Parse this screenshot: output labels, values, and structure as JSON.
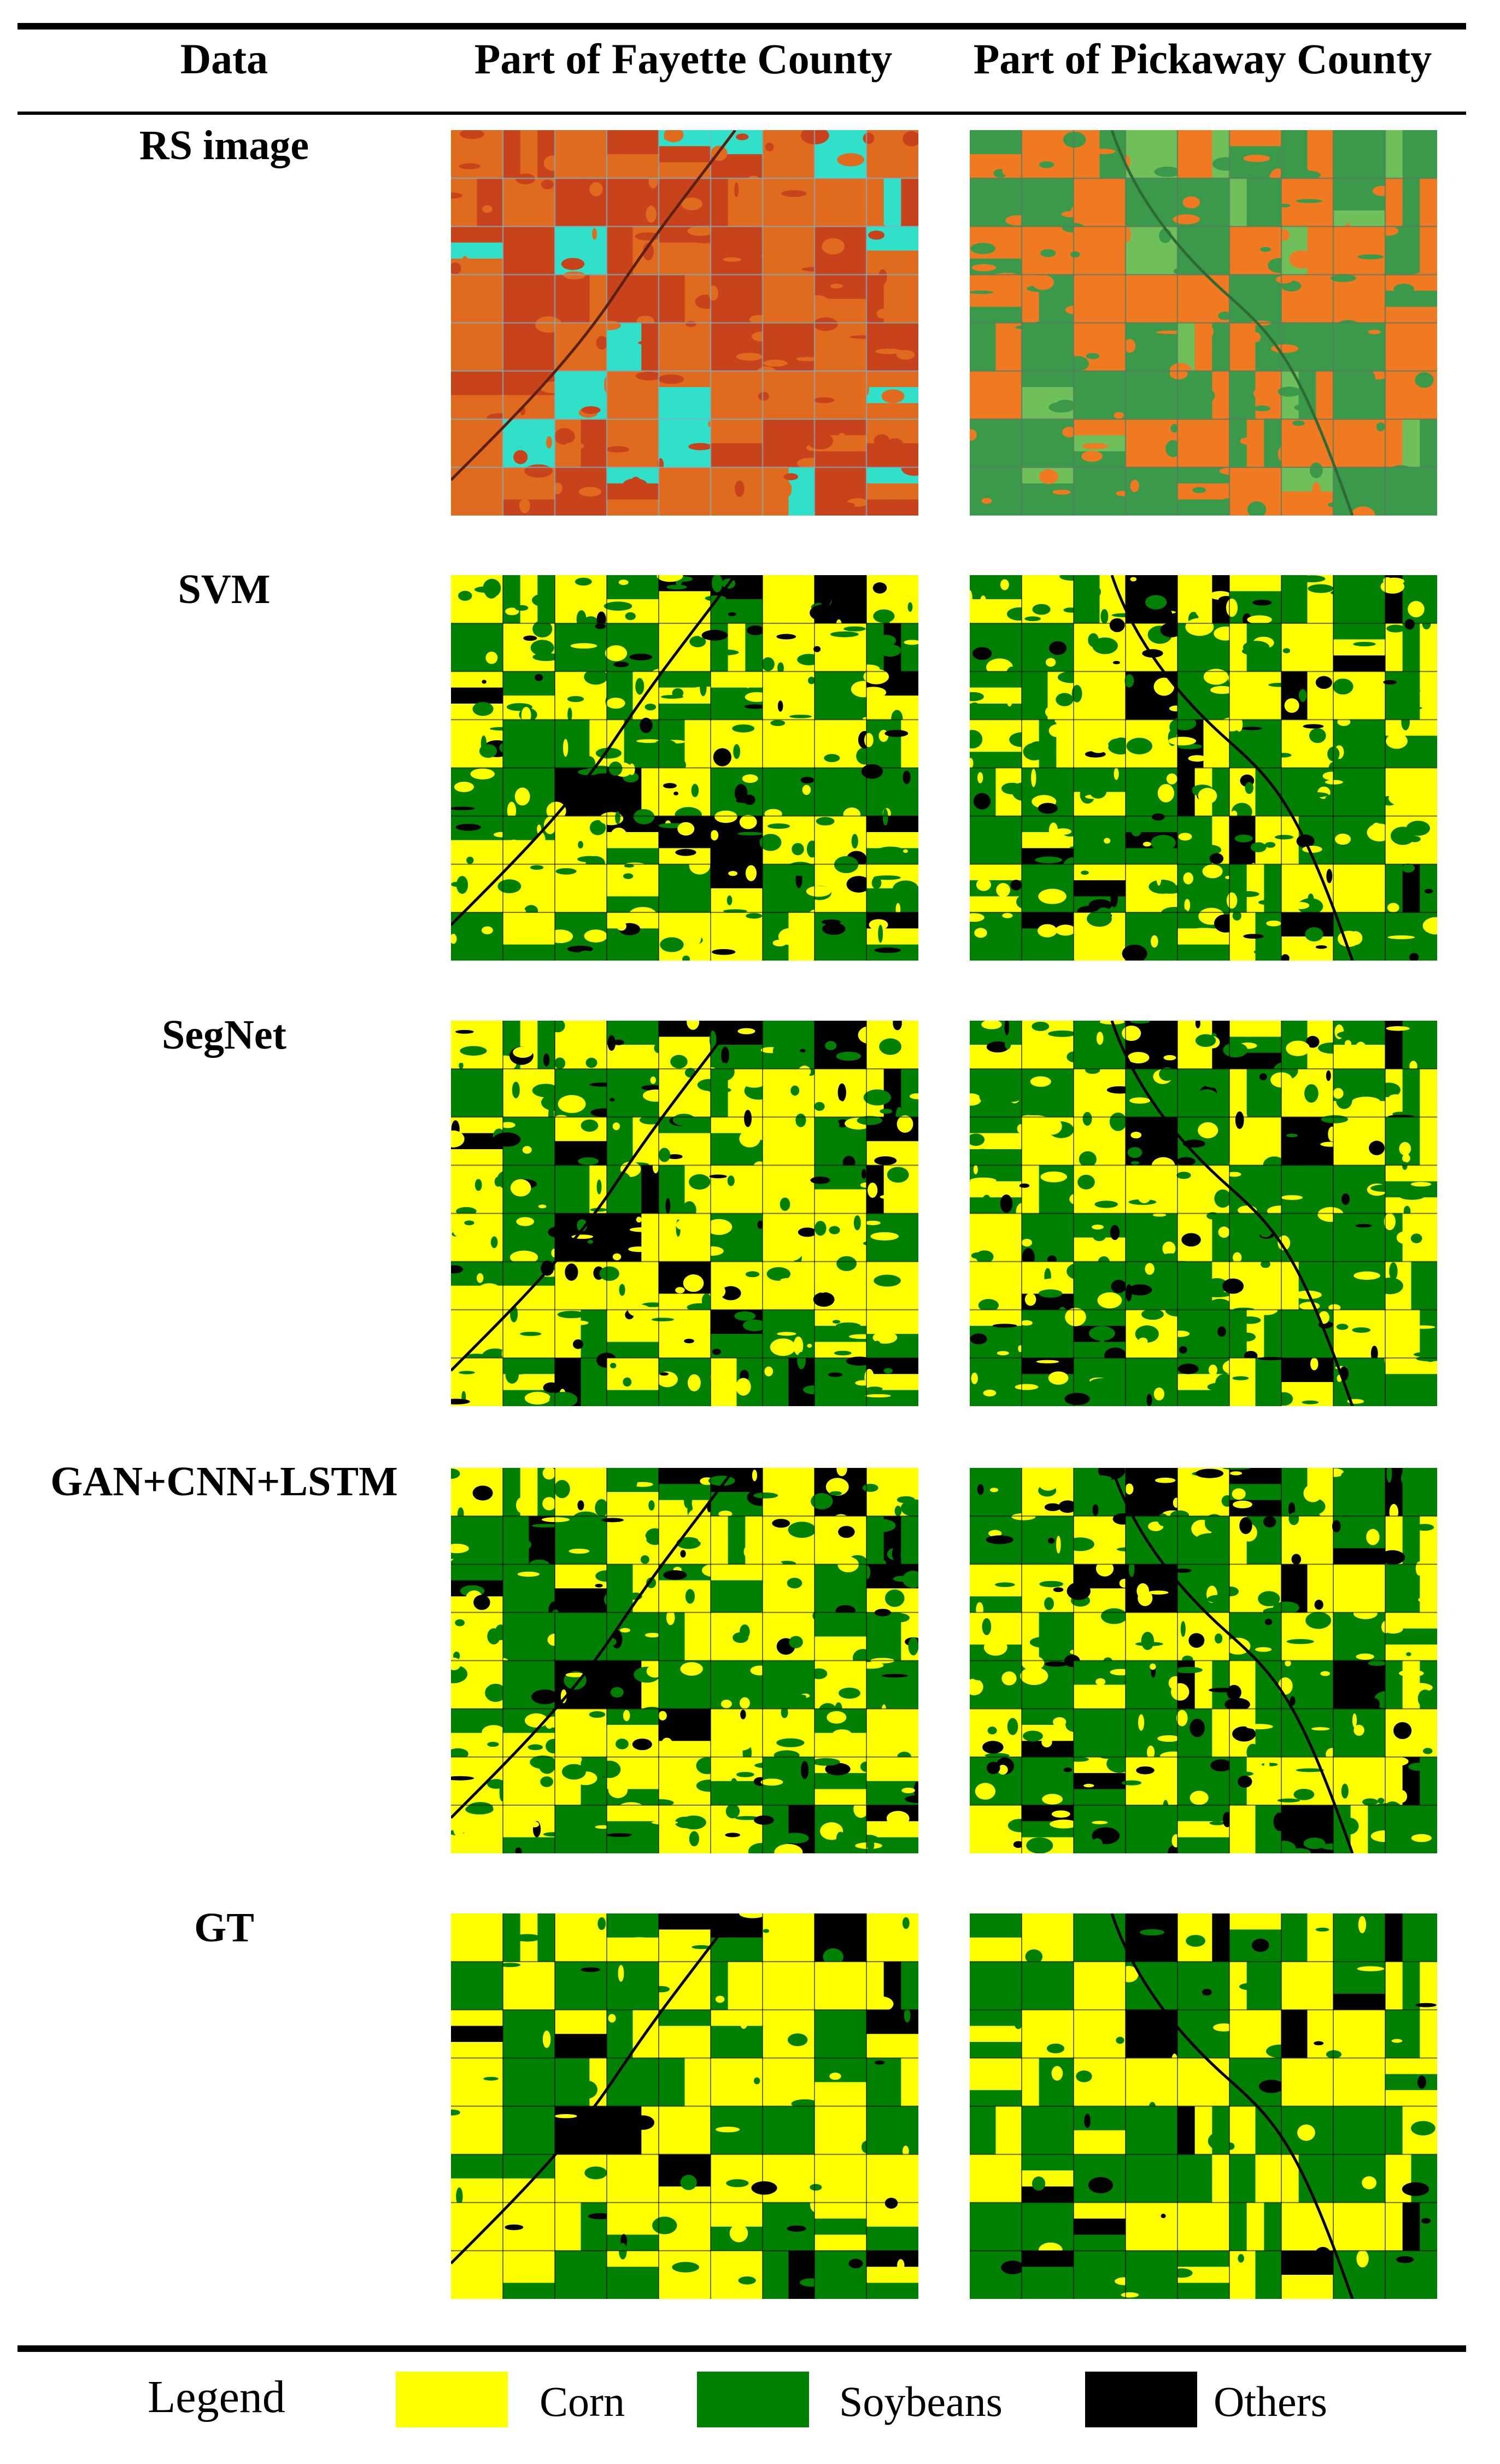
{
  "table": {
    "headers": {
      "data": "Data",
      "fayette": "Part of Fayette County",
      "pickaway": "Part of Pickaway County"
    },
    "rows": [
      {
        "label": "RS image",
        "kind": "rs"
      },
      {
        "label": "SVM",
        "kind": "classification"
      },
      {
        "label": "SegNet",
        "kind": "classification"
      },
      {
        "label": "GAN+CNN+LSTM",
        "kind": "classification"
      },
      {
        "label": "GT",
        "kind": "classification"
      }
    ]
  },
  "legend": {
    "title": "Legend",
    "items": [
      {
        "label": "Corn",
        "color": "#ffff00"
      },
      {
        "label": "Soybeans",
        "color": "#008000"
      },
      {
        "label": "Others",
        "color": "#000000"
      }
    ]
  },
  "colors": {
    "corn": "#ffff00",
    "soybeans": "#008000",
    "others": "#000000",
    "rs_fayette_base": "#c8421c",
    "rs_fayette_alt": "#e06a1e",
    "rs_fayette_water": "#30e0c8",
    "rs_pickaway_base": "#3a9a4a",
    "rs_pickaway_alt": "#f07a22"
  }
}
